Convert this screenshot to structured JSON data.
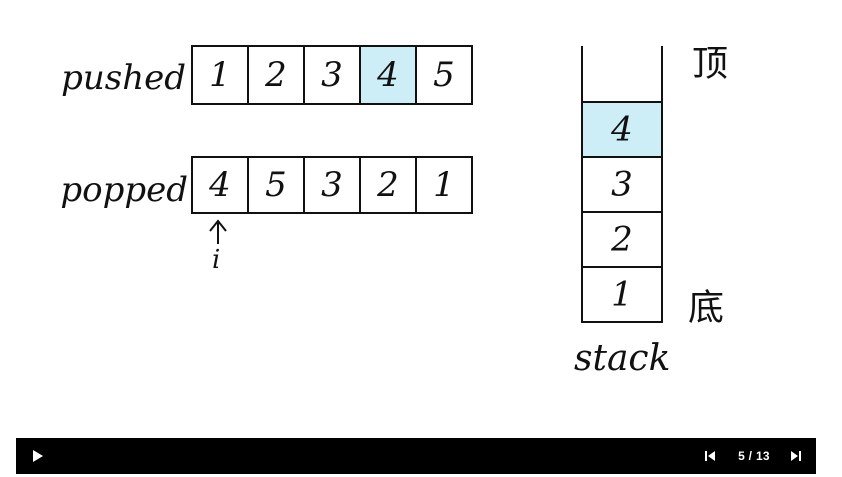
{
  "pushed": {
    "label": "pushed",
    "values": [
      "1",
      "2",
      "3",
      "4",
      "5"
    ],
    "highlight_index": 3
  },
  "popped": {
    "label": "popped",
    "values": [
      "4",
      "5",
      "3",
      "2",
      "1"
    ],
    "pointer_index": 0,
    "pointer_label": "i"
  },
  "stack": {
    "label": "stack",
    "top_label": "顶",
    "bottom_label": "底",
    "values_top_to_bottom": [
      "4",
      "3",
      "2",
      "1"
    ],
    "highlight_index": 0
  },
  "colors": {
    "highlight": "#cdeef7",
    "ink": "#111111",
    "controls_bg": "#000000"
  },
  "controls": {
    "current": "5",
    "total": "13",
    "counter_text": "5 / 13",
    "play_icon": "play-icon",
    "prev_icon": "skip-previous-icon",
    "next_icon": "skip-next-icon"
  }
}
